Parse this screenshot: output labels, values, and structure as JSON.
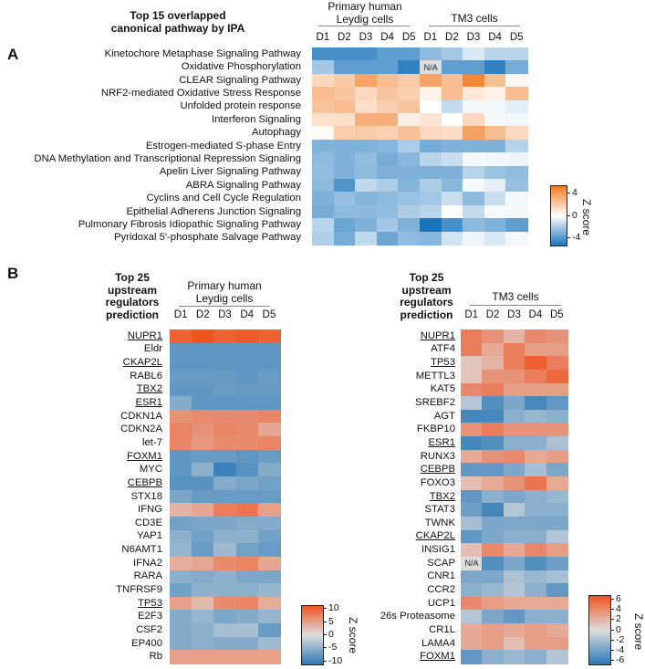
{
  "panel_a": {
    "letter": "A",
    "title": [
      "Top 15 overlapped",
      "canonical pathway by IPA"
    ],
    "groups": [
      "Primary human Leydig cells",
      "TM3 cells"
    ],
    "legend_title": "Z score",
    "legend_ticks": [
      "4",
      "0",
      "-4"
    ]
  },
  "panel_b": {
    "letter": "B",
    "left_title": [
      "Top 25",
      "upstream",
      "regulators",
      "prediction"
    ],
    "left_group": "Primary human Leydig cells",
    "right_title": [
      "Top 25",
      "upstream",
      "regulators",
      "prediction"
    ],
    "right_group": "TM3 cells",
    "left_legend_title": "Z score",
    "left_legend_ticks": [
      "10",
      "5",
      "0",
      "-5",
      "-10"
    ],
    "right_legend_title": "Z score",
    "right_legend_ticks": [
      "6",
      "4",
      "2",
      "0",
      "-2",
      "-4",
      "-6"
    ]
  },
  "colors": {
    "a_neg": "#1a74bb",
    "a_mid": "#ffffff",
    "a_pos": "#f07a22",
    "b_neg": "#2a78b6",
    "b_mid": "#dedede",
    "b_pos": "#ef5322",
    "na": "#dcdcdc"
  },
  "chart_data": [
    {
      "type": "heatmap",
      "columns": [
        "D1",
        "D2",
        "D3",
        "D4",
        "D5",
        "D1",
        "D2",
        "D3",
        "D4",
        "D5"
      ],
      "column_groups": [
        "Primary human Leydig cells",
        "Primary human Leydig cells",
        "Primary human Leydig cells",
        "Primary human Leydig cells",
        "Primary human Leydig cells",
        "TM3 cells",
        "TM3 cells",
        "TM3 cells",
        "TM3 cells",
        "TM3 cells"
      ],
      "zlim": [
        -5,
        5
      ],
      "na_label": "N/A",
      "rows": [
        {
          "label": "Kinetochore Metaphase Signaling Pathway",
          "values": [
            -4,
            -4,
            -4,
            -3.5,
            -3.5,
            -2.5,
            -2,
            -0.8,
            -1.5,
            -1.5
          ]
        },
        {
          "label": "Oxidative Phosphorylation",
          "values": [
            -2,
            -3.5,
            -3.5,
            -3.5,
            -4.5,
            null,
            -3.5,
            -3.5,
            -4.5,
            -3
          ]
        },
        {
          "label": "CLEAR Signaling Pathway",
          "values": [
            1.5,
            2,
            3.5,
            2.5,
            2,
            3.5,
            2.5,
            4.5,
            2.5,
            0.3
          ]
        },
        {
          "label": "NRF2-mediated Oxidative Stress Response",
          "values": [
            2.5,
            2.2,
            1.5,
            2.2,
            1.8,
            0.5,
            2.5,
            0.8,
            0.5,
            2.5
          ]
        },
        {
          "label": "Unfolded protein response",
          "values": [
            2.2,
            2.5,
            1.2,
            1.8,
            2.2,
            0,
            -1.3,
            -0.3,
            -0.3,
            -0.6
          ]
        },
        {
          "label": "Interferon Signaling",
          "values": [
            1.2,
            1.2,
            3,
            3,
            0.6,
            1,
            0,
            1.5,
            -0.2,
            -0.3
          ]
        },
        {
          "label": "Autophagy",
          "values": [
            0.2,
            1.8,
            2,
            1.7,
            2.3,
            1.5,
            1.3,
            3.5,
            2.5,
            1.5
          ]
        },
        {
          "label": "Estrogen-mediated S-phase Entry",
          "values": [
            -2.8,
            -2.8,
            -2.8,
            -2.6,
            -1.8,
            -3,
            -2.8,
            -2.8,
            -2.8,
            -1.6
          ]
        },
        {
          "label": "DNA Methylation and Transcriptional Repression Signaling",
          "values": [
            -2.5,
            -2.8,
            -2.4,
            -3,
            -2.6,
            -1.5,
            -1.2,
            -0.2,
            -0.3,
            -0.4
          ]
        },
        {
          "label": "Apelin Liver Signaling Pathway",
          "values": [
            -2.4,
            -2.8,
            -2.5,
            -2.8,
            -2.8,
            -2.8,
            -2.8,
            -1.6,
            -2.2,
            -2.4
          ]
        },
        {
          "label": "ABRA Signaling Pathway",
          "values": [
            -2.5,
            -3.8,
            -1.4,
            -1.8,
            -2.7,
            -1.8,
            -2.6,
            -0.2,
            -0.6,
            -2.3
          ]
        },
        {
          "label": "Cyclins and Cell Cycle Regulation",
          "values": [
            -2.8,
            -2.3,
            -2.7,
            -2.5,
            -2.2,
            -2,
            -1.2,
            -2.5,
            -1.2,
            -0.2
          ]
        },
        {
          "label": "Epithelial Adherens Junction Signaling",
          "values": [
            -3,
            -2.5,
            -2.5,
            -2.4,
            -1.8,
            -1.5,
            -0.1,
            -1.3,
            -0.2,
            -0.2
          ]
        },
        {
          "label": "Pulmonary Fibrosis Idiopathic Signaling Pathway",
          "values": [
            -1.5,
            -3.2,
            -2.8,
            -2,
            -2.8,
            -5,
            -4,
            -2.5,
            -2.8,
            -3.5
          ]
        },
        {
          "label": "Pyridoxal 5'-phosphate Salvage Pathway",
          "values": [
            -1.7,
            -3,
            -1.4,
            -3.2,
            -2.4,
            -2.6,
            -1,
            -0.4,
            -0.8,
            -0.3
          ]
        }
      ]
    },
    {
      "type": "heatmap",
      "columns": [
        "D1",
        "D2",
        "D3",
        "D4",
        "D5"
      ],
      "zlim": [
        -10,
        10
      ],
      "rows": [
        {
          "label": "NUPR1",
          "underlined": true,
          "values": [
            9,
            10,
            9,
            9.5,
            9
          ]
        },
        {
          "label": "Eldr",
          "underlined": false,
          "values": [
            -7,
            -7,
            -7,
            -7,
            -7
          ]
        },
        {
          "label": "CKAP2L",
          "underlined": true,
          "values": [
            -7,
            -7,
            -7,
            -7,
            -7
          ]
        },
        {
          "label": "RABL6",
          "underlined": false,
          "values": [
            -6.5,
            -6.5,
            -6.8,
            -7,
            -6.5
          ]
        },
        {
          "label": "TBX2",
          "underlined": true,
          "values": [
            -7,
            -7,
            -6.5,
            -6.8,
            -6.8
          ]
        },
        {
          "label": "ESR1",
          "underlined": true,
          "values": [
            -5,
            -7,
            -7,
            -7,
            -7
          ]
        },
        {
          "label": "CDKN1A",
          "underlined": false,
          "values": [
            5.5,
            6,
            6,
            6,
            6.5
          ]
        },
        {
          "label": "CDKN2A",
          "underlined": false,
          "values": [
            6.5,
            5.5,
            6.5,
            6,
            4
          ]
        },
        {
          "label": "let-7",
          "underlined": false,
          "values": [
            6.5,
            5,
            6,
            6,
            6.5
          ]
        },
        {
          "label": "FOXM1",
          "underlined": true,
          "values": [
            -7,
            -6.5,
            -6.5,
            -7,
            -6.5
          ]
        },
        {
          "label": "MYC",
          "underlined": false,
          "values": [
            -7,
            -4.5,
            -9,
            -7.5,
            -5
          ]
        },
        {
          "label": "CEBPB",
          "underlined": true,
          "values": [
            -7.5,
            -7.5,
            -5,
            -5.5,
            -6
          ]
        },
        {
          "label": "STX18",
          "underlined": false,
          "values": [
            -5.5,
            -6.5,
            -6.5,
            -6.5,
            -6.5
          ]
        },
        {
          "label": "IFNG",
          "underlined": false,
          "values": [
            3,
            4,
            7,
            7.5,
            4.5
          ]
        },
        {
          "label": "CD3E",
          "underlined": false,
          "values": [
            -6,
            -5.5,
            -5.5,
            -5,
            -5
          ]
        },
        {
          "label": "YAP1",
          "underlined": false,
          "values": [
            -4.5,
            -6,
            -4.5,
            -4.5,
            -6
          ]
        },
        {
          "label": "N6AMT1",
          "underlined": false,
          "values": [
            -4,
            -6.5,
            -3.5,
            -6,
            -6.5
          ]
        },
        {
          "label": "IFNA2",
          "underlined": false,
          "values": [
            3.5,
            4,
            6,
            6.5,
            4
          ]
        },
        {
          "label": "RARA",
          "underlined": false,
          "values": [
            -4.5,
            -5,
            -4.5,
            -5.5,
            -5.5
          ]
        },
        {
          "label": "TNFRSF9",
          "underlined": false,
          "values": [
            -6,
            -4.5,
            -4.5,
            -4.5,
            -4
          ]
        },
        {
          "label": "TP53",
          "underlined": true,
          "values": [
            4.5,
            2.5,
            6,
            6.5,
            3.5
          ]
        },
        {
          "label": "E2F3",
          "underlined": false,
          "values": [
            -5,
            -4,
            -5.5,
            -5,
            -4
          ]
        },
        {
          "label": "CSF2",
          "underlined": false,
          "values": [
            -5,
            -4.5,
            -3,
            -3,
            -6.5
          ]
        },
        {
          "label": "EP400",
          "underlined": false,
          "values": [
            -5,
            -4.5,
            -5,
            -5,
            -3.5
          ]
        },
        {
          "label": "Rb",
          "underlined": false,
          "values": [
            4.5,
            4.5,
            4.5,
            4.5,
            4.5
          ]
        }
      ]
    },
    {
      "type": "heatmap",
      "columns": [
        "D1",
        "D2",
        "D3",
        "D4",
        "D5"
      ],
      "zlim": [
        -6.5,
        6.5
      ],
      "na_label": "N/A",
      "rows": [
        {
          "label": "NUPR1",
          "underlined": true,
          "values": [
            4.5,
            3.5,
            2,
            4,
            3.5
          ]
        },
        {
          "label": "ATF4",
          "underlined": false,
          "values": [
            4.5,
            2.5,
            4.5,
            3,
            3
          ]
        },
        {
          "label": "TP53",
          "underlined": true,
          "values": [
            1.2,
            2,
            4.5,
            6,
            4.5
          ]
        },
        {
          "label": "METTL3",
          "underlined": false,
          "values": [
            1.2,
            3.5,
            3.5,
            4.5,
            5.5
          ]
        },
        {
          "label": "KAT5",
          "underlined": false,
          "values": [
            4,
            4.5,
            3,
            3,
            3
          ]
        },
        {
          "label": "SREBF2",
          "underlined": false,
          "values": [
            -1.5,
            -5,
            -3.5,
            -5.5,
            -4.5
          ]
        },
        {
          "label": "AGT",
          "underlined": false,
          "values": [
            -5.5,
            -5.5,
            -3,
            -2.5,
            -3
          ]
        },
        {
          "label": "FKBP10",
          "underlined": false,
          "values": [
            3.5,
            4.5,
            3.5,
            3.5,
            3.5
          ]
        },
        {
          "label": "ESR1",
          "underlined": true,
          "values": [
            -5.5,
            -5,
            -3,
            -3,
            -1.8
          ]
        },
        {
          "label": "RUNX3",
          "underlined": false,
          "values": [
            2.5,
            3.5,
            4,
            2.5,
            3
          ]
        },
        {
          "label": "CEBPB",
          "underlined": true,
          "values": [
            -4.5,
            -4.5,
            -3.5,
            -2,
            -3.5
          ]
        },
        {
          "label": "FOXO3",
          "underlined": false,
          "values": [
            1.5,
            2.5,
            3.5,
            5,
            2.5
          ]
        },
        {
          "label": "TBX2",
          "underlined": true,
          "values": [
            -4.5,
            -3,
            -3.5,
            -3,
            -2.5
          ]
        },
        {
          "label": "STAT3",
          "underlined": false,
          "values": [
            -4,
            -5.5,
            -1.5,
            -3,
            -3
          ]
        },
        {
          "label": "TWNK",
          "underlined": false,
          "values": [
            -2,
            -3.5,
            -3.5,
            -3.5,
            -3.5
          ]
        },
        {
          "label": "CKAP2L",
          "underlined": true,
          "values": [
            -4.5,
            -3.5,
            -3,
            -3,
            -1.5
          ]
        },
        {
          "label": "INSIG1",
          "underlined": false,
          "values": [
            1.5,
            4,
            2.5,
            4,
            3
          ]
        },
        {
          "label": "SCAP",
          "underlined": false,
          "values": [
            null,
            -5,
            -3.5,
            -5,
            -4
          ]
        },
        {
          "label": "CNR1",
          "underlined": false,
          "values": [
            -3.5,
            -3.5,
            -1.8,
            -2.5,
            -2
          ]
        },
        {
          "label": "CCR2",
          "underlined": false,
          "values": [
            -3,
            -2.5,
            -1.5,
            -3,
            -4.5
          ]
        },
        {
          "label": "UCP1",
          "underlined": false,
          "values": [
            4,
            3,
            2.5,
            2.5,
            2.5
          ]
        },
        {
          "label": "26s Proteasome",
          "underlined": false,
          "values": [
            -1.5,
            -3.5,
            -4.5,
            -3,
            -3
          ]
        },
        {
          "label": "CR1L",
          "underlined": false,
          "values": [
            2.5,
            3,
            2.5,
            3,
            2.5
          ]
        },
        {
          "label": "LAMA4",
          "underlined": false,
          "values": [
            2.5,
            3,
            1.5,
            3,
            3
          ]
        },
        {
          "label": "FOXM1",
          "underlined": true,
          "values": [
            -4.5,
            -3,
            -2.5,
            -3,
            -1.5
          ]
        }
      ]
    }
  ]
}
